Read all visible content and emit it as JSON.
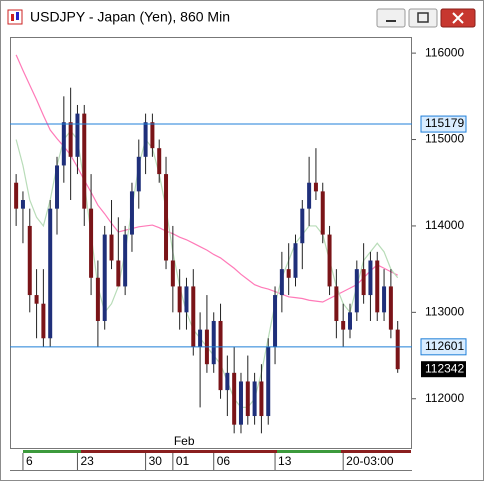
{
  "chart_data": {
    "type": "candlestick",
    "title": "USDJPY - Japan (Yen), 860 Min",
    "up_color": "#1f2f7a",
    "down_color": "#7a1418",
    "open": [
      114500,
      114200,
      114000,
      113200,
      113100,
      112700,
      114200,
      114700,
      115200,
      114800,
      115300,
      114200,
      113400,
      112900,
      113900,
      113600,
      113300,
      113900,
      114400,
      114800,
      115200,
      114900,
      114600,
      113600,
      113300,
      113000,
      113300,
      112600,
      112800,
      112400,
      112900,
      112100,
      112300,
      111700,
      112200,
      111800,
      112200,
      111800,
      112600,
      113200,
      113500,
      113400,
      113800,
      114200,
      114500,
      114400,
      113900,
      113300,
      112900,
      112800,
      113000,
      113500,
      113200,
      113600,
      113000,
      113300,
      112800
    ],
    "high": [
      114600,
      114400,
      114200,
      113500,
      113500,
      114300,
      114800,
      115500,
      115600,
      115400,
      115400,
      114600,
      113600,
      114000,
      114300,
      114100,
      114000,
      114500,
      115000,
      115300,
      115300,
      115000,
      114800,
      114000,
      113500,
      113400,
      113500,
      113000,
      113200,
      113000,
      113100,
      112500,
      112600,
      112300,
      112500,
      112300,
      112400,
      112700,
      113300,
      113700,
      113800,
      113900,
      114300,
      114800,
      114900,
      114500,
      114000,
      113500,
      113100,
      113100,
      113600,
      113800,
      113700,
      113700,
      113500,
      113500,
      112900
    ],
    "low": [
      114000,
      113800,
      113000,
      112700,
      112600,
      112600,
      113900,
      114500,
      114300,
      114600,
      114000,
      113200,
      112600,
      112800,
      113500,
      113300,
      113200,
      113700,
      114200,
      114600,
      114800,
      114500,
      113500,
      113000,
      112800,
      112800,
      112500,
      111900,
      112300,
      112300,
      112000,
      111800,
      111600,
      111600,
      111700,
      111700,
      111600,
      111700,
      112400,
      113000,
      113200,
      113300,
      113500,
      114000,
      114300,
      113800,
      113200,
      112700,
      112600,
      112700,
      112900,
      113100,
      112900,
      112900,
      112900,
      112700,
      112300
    ],
    "close": [
      114200,
      114300,
      113200,
      113100,
      112700,
      114200,
      114700,
      115200,
      114800,
      115300,
      114200,
      113400,
      112900,
      113900,
      113600,
      113300,
      113900,
      114400,
      114800,
      115200,
      114900,
      114600,
      113600,
      113300,
      113000,
      113300,
      112600,
      112800,
      112400,
      112900,
      112100,
      112300,
      111700,
      112200,
      111800,
      112200,
      111800,
      112600,
      113200,
      113500,
      113400,
      113800,
      114200,
      114500,
      114400,
      113900,
      113300,
      112900,
      112800,
      113000,
      113500,
      113200,
      113600,
      113000,
      113300,
      112800,
      112342
    ],
    "lines": [
      {
        "color": "#ff7ab8",
        "values": [
          115980,
          115800,
          115630,
          115460,
          115280,
          115110,
          115010,
          114920,
          114820,
          114680,
          114530,
          114390,
          114240,
          114140,
          114030,
          113930,
          113950,
          113970,
          113990,
          114000,
          114010,
          113980,
          113940,
          113910,
          113870,
          113840,
          113800,
          113760,
          113720,
          113670,
          113630,
          113570,
          113510,
          113440,
          113380,
          113320,
          113290,
          113270,
          113240,
          113210,
          113180,
          113170,
          113160,
          113140,
          113130,
          113120,
          113160,
          113200,
          113240,
          113280,
          113320,
          113400,
          113480,
          113550,
          113510,
          113470,
          113430
        ]
      },
      {
        "color": "#b8dcb8",
        "values": [
          115000,
          114700,
          114300,
          114100,
          114000,
          114300,
          114700,
          115000,
          115100,
          115000,
          114500,
          113900,
          113300,
          113000,
          113100,
          113300,
          113700,
          114200,
          114700,
          115000,
          114900,
          114600,
          114200,
          113700,
          113300,
          113000,
          112800,
          112700,
          112600,
          112500,
          112400,
          112200,
          112000,
          111900,
          111900,
          112000,
          112300,
          112700,
          113100,
          113400,
          113600,
          113800,
          113900,
          114000,
          114000,
          113900,
          113600,
          113300,
          113100,
          113000,
          113300,
          113600,
          113700,
          113800,
          113700,
          113500,
          113400
        ]
      }
    ],
    "hlines": [
      115179,
      112601
    ],
    "hline_color": "#1f7fd8",
    "ylim": [
      111430,
      116175
    ],
    "yticks": [
      112000,
      113000,
      114000,
      115000,
      116000
    ],
    "xlim": [
      -0.9,
      58.1
    ],
    "xticks": [
      {
        "value": 1,
        "label": "6"
      },
      {
        "value": 9,
        "label": "23"
      },
      {
        "value": 19,
        "label": "30"
      },
      {
        "value": 23,
        "label": "01"
      },
      {
        "value": 29,
        "label": "06"
      },
      {
        "value": 38,
        "label": "13"
      },
      {
        "value": 48,
        "label": "20-03:00"
      }
    ],
    "month_label": {
      "value": 23,
      "label": "Feb"
    }
  }
}
